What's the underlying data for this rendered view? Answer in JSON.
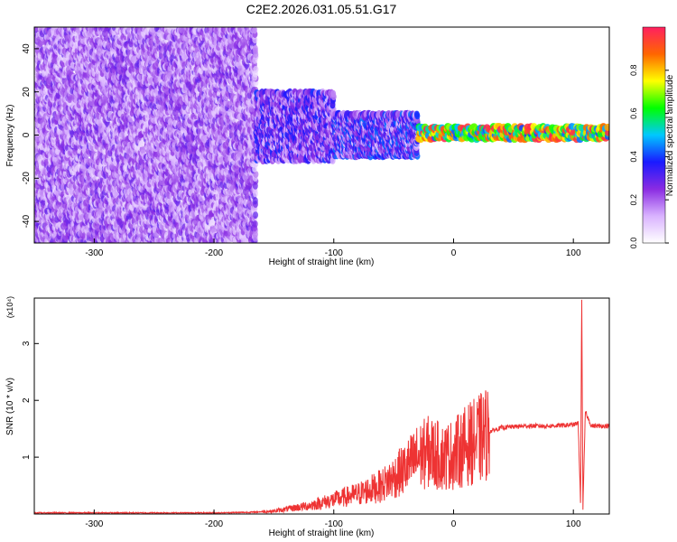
{
  "figure": {
    "title": "C2E2.2026.031.05.51.G17"
  },
  "chart_data": [
    {
      "type": "heatmap",
      "xlabel": "Height of straight line (km)",
      "ylabel": "Frequency (Hz)",
      "xlim": [
        -350,
        130
      ],
      "ylim": [
        -50,
        50
      ],
      "xticks": [
        -300,
        -200,
        -100,
        0,
        100
      ],
      "yticks": [
        -40,
        -20,
        0,
        20,
        40
      ],
      "colorbar": {
        "label": "Normalized spectral amplitude",
        "range": [
          0,
          1
        ],
        "ticks": [
          "0.0",
          "0.2",
          "0.4",
          "0.6",
          "0.8"
        ],
        "colors": [
          "#ffffff",
          "#d9b3ff",
          "#8a2be2",
          "#1a1aff",
          "#00c8ff",
          "#00ff00",
          "#ffff00",
          "#ff6600",
          "#ff2060"
        ]
      },
      "regions": [
        {
          "x": [
            -350,
            -165
          ],
          "freq": [
            -50,
            50
          ],
          "amplitude": [
            0.05,
            0.3
          ],
          "description_color": "#8a2be2"
        },
        {
          "x": [
            -165,
            -100
          ],
          "freq": [
            -12,
            20
          ],
          "amplitude": [
            0.1,
            0.4
          ]
        },
        {
          "x": [
            -100,
            -30
          ],
          "freq": [
            -10,
            10
          ],
          "amplitude": [
            0.1,
            0.45
          ]
        },
        {
          "x": [
            -30,
            130
          ],
          "freq": [
            -2,
            4
          ],
          "amplitude": [
            0.4,
            1.0
          ]
        }
      ]
    },
    {
      "type": "line",
      "xlabel": "Height of straight line (km)",
      "ylabel": "SNR (10 * v/v)",
      "y_multiplier": "(x10⁴)",
      "xlim": [
        -350,
        130
      ],
      "ylim": [
        0,
        3.8
      ],
      "xticks": [
        -300,
        -200,
        -100,
        0,
        100
      ],
      "yticks": [
        1,
        2,
        3
      ],
      "series": [
        {
          "color": "#ee3333",
          "x": [
            -350,
            -300,
            -250,
            -200,
            -170,
            -150,
            -120,
            -100,
            -80,
            -60,
            -40,
            -30,
            -20,
            -10,
            0,
            10,
            20,
            30,
            40,
            60,
            80,
            100,
            104,
            106,
            107,
            108,
            110,
            115,
            130
          ],
          "y": [
            0.02,
            0.02,
            0.02,
            0.02,
            0.03,
            0.05,
            0.15,
            0.25,
            0.35,
            0.5,
            0.8,
            1.0,
            1.1,
            1.0,
            1.05,
            1.2,
            1.3,
            1.45,
            1.52,
            1.55,
            1.55,
            1.57,
            1.6,
            0.2,
            3.8,
            0.1,
            1.8,
            1.55,
            1.55
          ]
        }
      ]
    }
  ]
}
